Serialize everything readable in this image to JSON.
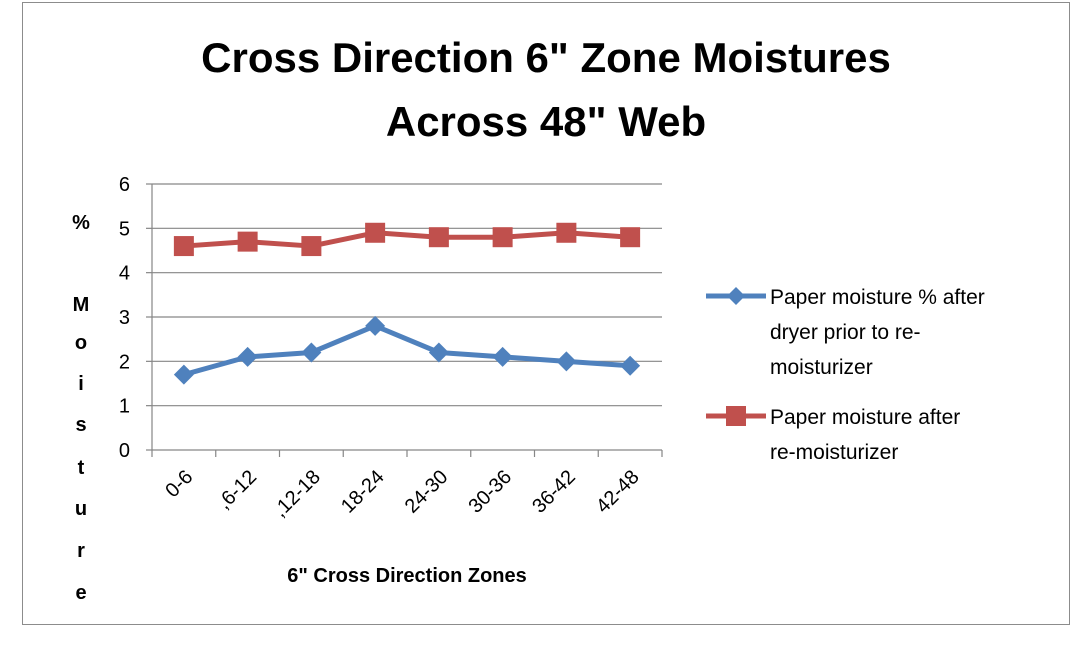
{
  "chart_data": {
    "type": "line",
    "title": "Cross Direction 6\" Zone Moistures Across 48\" Web",
    "title_lines": [
      "Cross Direction 6\" Zone Moistures",
      "Across 48\" Web"
    ],
    "xlabel": "6\" Cross Direction Zones",
    "ylabel": "% Moisture",
    "ylabel_chars": [
      "%",
      "M",
      "o",
      "i",
      "s",
      "t",
      "u",
      "r",
      "e"
    ],
    "categories": [
      "0-6",
      ",6-12",
      ",12-18",
      "18-24",
      "24-30",
      "30-36",
      "36-42",
      "42-48"
    ],
    "ylim": [
      0,
      6
    ],
    "yticks": [
      0,
      1,
      2,
      3,
      4,
      5,
      6
    ],
    "grid": true,
    "legend_position": "right",
    "series": [
      {
        "name": "Paper moisture % after dryer prior to re-moisturizer",
        "legend_lines": [
          "Paper moisture % after",
          "dryer prior to re-",
          "moisturizer"
        ],
        "marker": "diamond",
        "color": "#4F81BD",
        "values": [
          1.7,
          2.1,
          2.2,
          2.8,
          2.2,
          2.1,
          2.0,
          1.9
        ]
      },
      {
        "name": "Paper moisture after re-moisturizer",
        "legend_lines": [
          "Paper moisture after",
          "re-moisturizer"
        ],
        "marker": "square",
        "color": "#C0504D",
        "values": [
          4.6,
          4.7,
          4.6,
          4.9,
          4.8,
          4.8,
          4.9,
          4.8
        ]
      }
    ]
  }
}
